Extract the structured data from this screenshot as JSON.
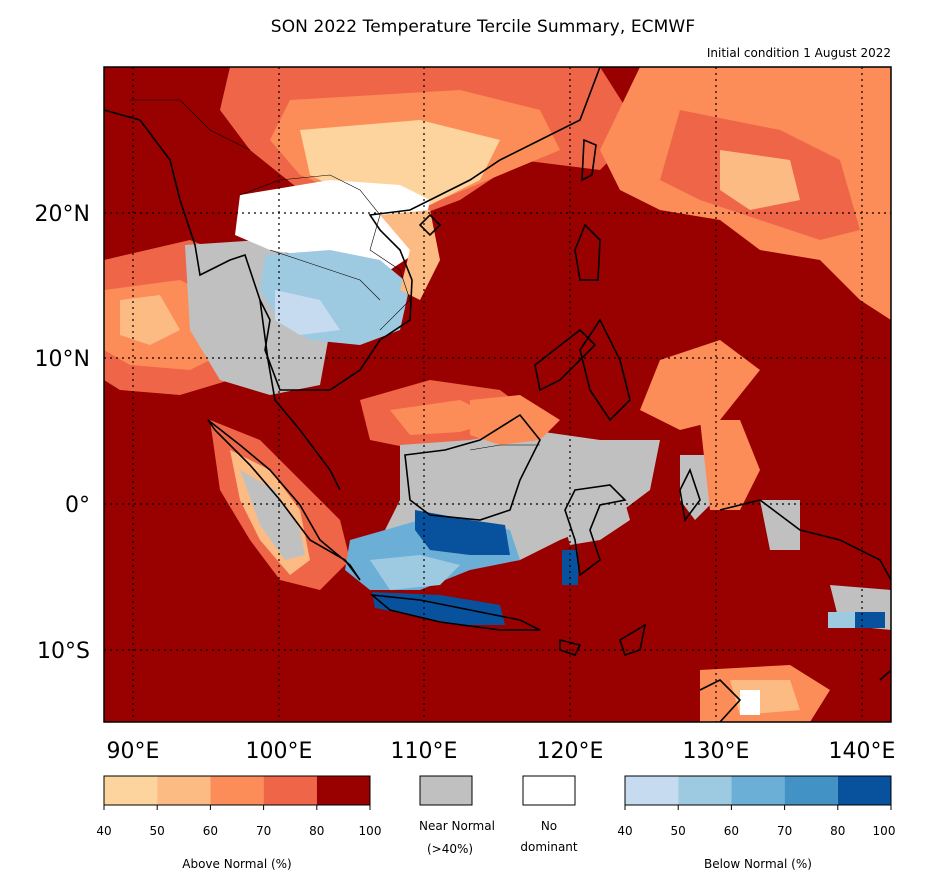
{
  "title": "SON 2022 Temperature Tercile Summary, ECMWF",
  "subtitle": "Initial condition 1 August 2022",
  "colors": {
    "above": [
      "#fdd49e",
      "#fdbb84",
      "#fc8d59",
      "#ef6548",
      "#990000"
    ],
    "near_normal": "#c0c0c0",
    "no_dominant": "#ffffff",
    "below": [
      "#c6dbef",
      "#9ecae1",
      "#6baed6",
      "#4292c6",
      "#08519c"
    ]
  },
  "map": {
    "lon_range": [
      88,
      142
    ],
    "lat_range": [
      -15,
      30
    ],
    "lon_ticks": [
      "90°E",
      "100°E",
      "110°E",
      "120°E",
      "130°E",
      "140°E"
    ],
    "lat_ticks": [
      "20°N",
      "10°N",
      "0°",
      "10°S"
    ],
    "gridlines": "dotted"
  },
  "legends": {
    "above": {
      "title": "Above Normal (%)",
      "ticks": [
        "40",
        "50",
        "60",
        "70",
        "80",
        "100"
      ]
    },
    "near_normal": {
      "label_line1": "Near Normal",
      "label_line2": "(>40%)"
    },
    "no_dominant": {
      "label_line1": "No",
      "label_line2": "dominant"
    },
    "below": {
      "title": "Below Normal (%)",
      "ticks": [
        "40",
        "50",
        "60",
        "70",
        "80",
        "100"
      ]
    }
  }
}
